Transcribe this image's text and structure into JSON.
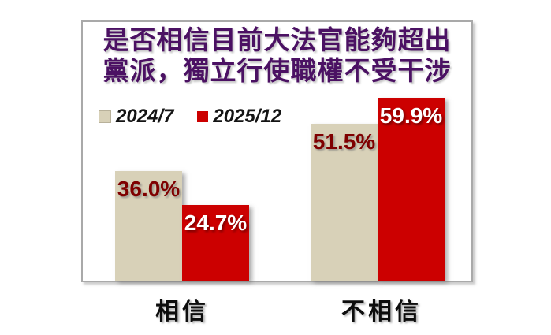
{
  "chart_data": {
    "type": "bar",
    "title": "是否相信目前大法官能夠超出黨派，獨立行使職權不受干涉",
    "title_lines": [
      "是否相信目前大法官能夠超出",
      "黨派，獨立行使職權不受干涉"
    ],
    "title_color": "#4b1163",
    "categories": [
      "相信",
      "不相信"
    ],
    "series": [
      {
        "name": "2024/7",
        "values": [
          36.0,
          51.5
        ],
        "labels": [
          "36.0%",
          "51.5%"
        ],
        "bar_color": "#d8d1b8",
        "label_color": "#7f0000"
      },
      {
        "name": "2025/12",
        "values": [
          24.7,
          59.9
        ],
        "labels": [
          "24.7%",
          "59.9%"
        ],
        "bar_color": "#cc0000",
        "label_color": "#ffffff"
      }
    ],
    "ylim": [
      0,
      65
    ],
    "grid": false,
    "axes_visible": false,
    "legend_position": "top-left"
  }
}
